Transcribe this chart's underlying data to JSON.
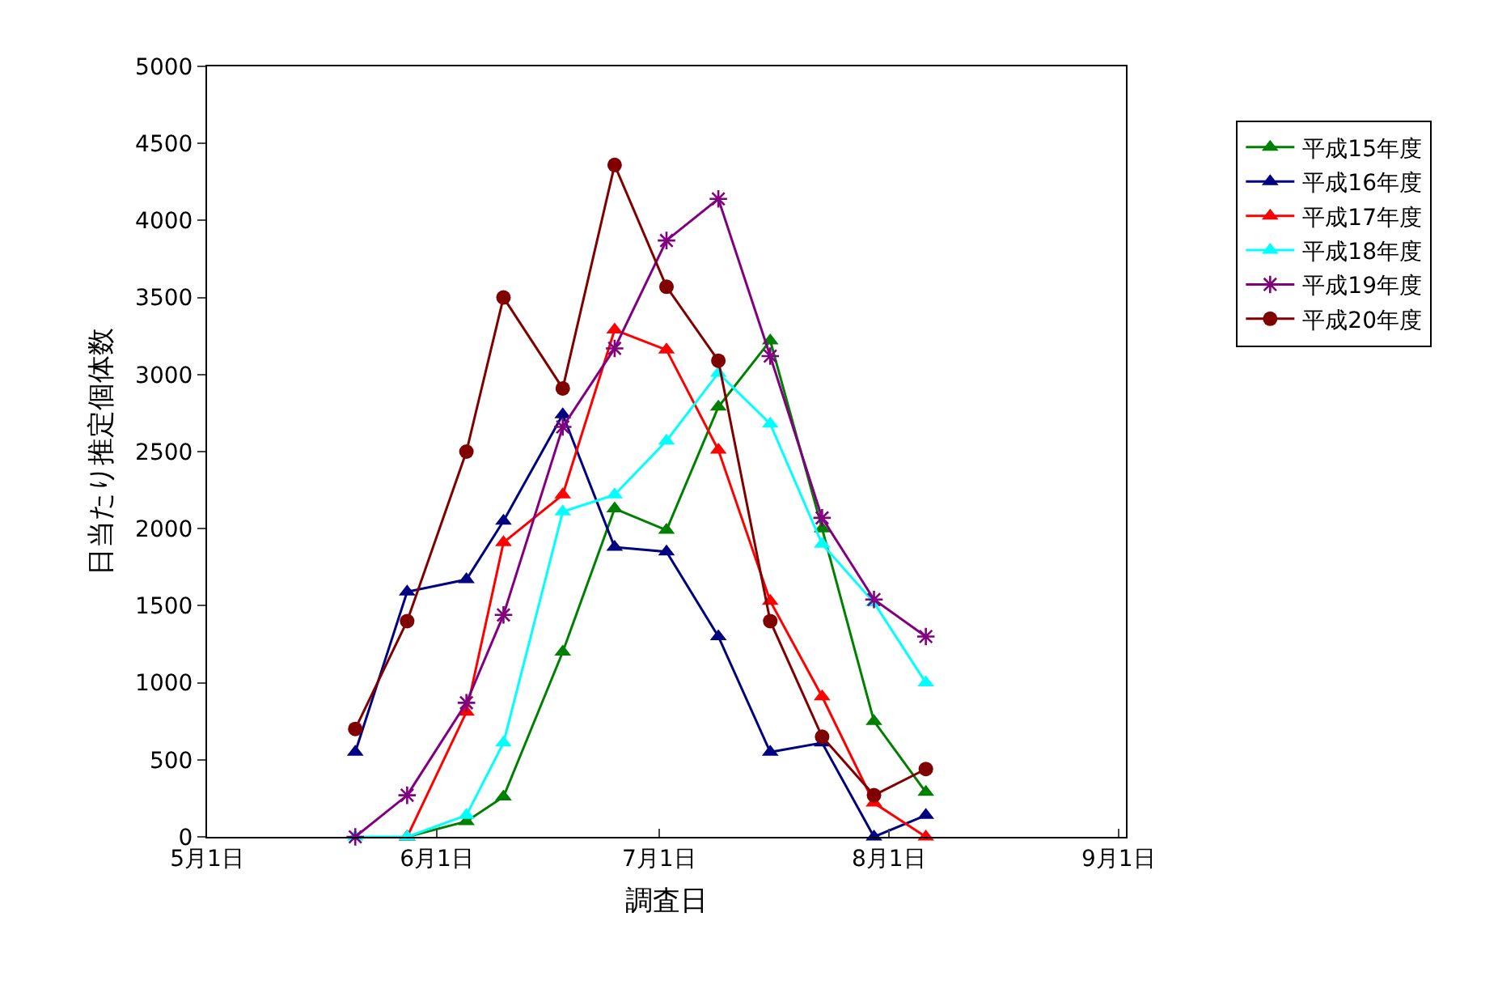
{
  "chart_data": {
    "type": "line",
    "xlabel": "調査日",
    "ylabel": "日当たり推定個体数",
    "x": [
      "--05-21",
      "--05-28",
      "--06-05",
      "--06-10",
      "--06-18",
      "--06-25",
      "--07-02",
      "--07-09",
      "--07-16",
      "--07-23",
      "--07-30",
      "--08-06"
    ],
    "series": [
      {
        "name": "平成15年度",
        "color": "#008000",
        "marker": "triangle",
        "values": [
          null,
          0,
          100,
          260,
          1200,
          2130,
          1990,
          2790,
          3220,
          2000,
          750,
          290
        ]
      },
      {
        "name": "平成16年度",
        "color": "#000080",
        "marker": "triangle",
        "values": [
          550,
          1590,
          1670,
          2050,
          2740,
          1880,
          1850,
          1300,
          550,
          610,
          0,
          140
        ]
      },
      {
        "name": "平成17年度",
        "color": "#ff0000",
        "marker": "triangle",
        "values": [
          null,
          0,
          810,
          1910,
          2220,
          3290,
          3160,
          2510,
          1530,
          910,
          220,
          0
        ]
      },
      {
        "name": "平成18年度",
        "color": "#00ffff",
        "marker": "triangle",
        "values": [
          0,
          0,
          140,
          610,
          2110,
          2220,
          2570,
          3010,
          2680,
          1900,
          1520,
          1000
        ]
      },
      {
        "name": "平成19年度",
        "color": "#800080",
        "marker": "cross",
        "values": [
          0,
          270,
          870,
          1440,
          2660,
          3170,
          3870,
          4140,
          3120,
          2070,
          1540,
          1300
        ]
      },
      {
        "name": "平成20年度",
        "color": "#800000",
        "marker": "circle",
        "values": [
          700,
          1400,
          2500,
          3500,
          2910,
          4360,
          3570,
          3090,
          1400,
          650,
          270,
          440
        ]
      }
    ],
    "xlim": [
      "--05-01",
      "--09-02"
    ],
    "xticks": [
      {
        "value": "--05-01",
        "label": "5月1日"
      },
      {
        "value": "--06-01",
        "label": "6月1日"
      },
      {
        "value": "--07-01",
        "label": "7月1日"
      },
      {
        "value": "--08-01",
        "label": "8月1日"
      },
      {
        "value": "--09-01",
        "label": "9月1日"
      }
    ],
    "ylim": [
      0,
      5000
    ],
    "yticks": [
      0,
      500,
      1000,
      1500,
      2000,
      2500,
      3000,
      3500,
      4000,
      4500,
      5000
    ],
    "grid": false,
    "legend": "top right",
    "line_style": "solid"
  }
}
